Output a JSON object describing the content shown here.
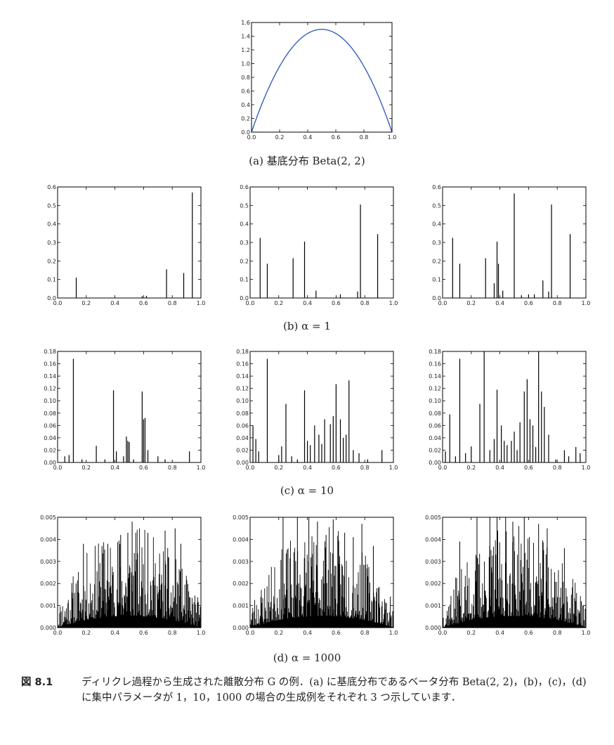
{
  "chart_data": [
    {
      "id": "a",
      "type": "line",
      "subtitle": "(a) 基底分布 Beta(2, 2)",
      "xlim": [
        0,
        1
      ],
      "ylim": [
        0,
        1.6
      ],
      "xticks": [
        "0.0",
        "0.2",
        "0.4",
        "0.6",
        "0.8",
        "1.0"
      ],
      "yticks": [
        "0.0",
        "0.2",
        "0.4",
        "0.6",
        "0.8",
        "1.0",
        "1.2",
        "1.4",
        "1.6"
      ],
      "ytick_values": [
        0,
        0.2,
        0.4,
        0.6,
        0.8,
        1.0,
        1.2,
        1.4,
        1.6
      ],
      "function": "6x(1-x)",
      "line_color": "#3a5fb8"
    },
    {
      "id": "b1",
      "type": "bar",
      "xlim": [
        0,
        1
      ],
      "ylim": [
        0,
        0.6
      ],
      "xticks": [
        "0.0",
        "0.2",
        "0.4",
        "0.6",
        "0.8",
        "1.0"
      ],
      "yticks": [
        "0.0",
        "0.1",
        "0.2",
        "0.3",
        "0.4",
        "0.5",
        "0.6"
      ],
      "ytick_values": [
        0,
        0.1,
        0.2,
        0.3,
        0.4,
        0.5,
        0.6
      ],
      "x": [
        0.13,
        0.59,
        0.62,
        0.76,
        0.88,
        0.94
      ],
      "y": [
        0.11,
        0.01,
        0.012,
        0.155,
        0.135,
        0.57
      ]
    },
    {
      "id": "b2",
      "type": "bar",
      "xlim": [
        0,
        1
      ],
      "ylim": [
        0,
        0.6
      ],
      "xticks": [
        "0.0",
        "0.2",
        "0.4",
        "0.6",
        "0.8",
        "1.0"
      ],
      "yticks": [
        "0.0",
        "0.1",
        "0.2",
        "0.3",
        "0.4",
        "0.5",
        "0.6"
      ],
      "ytick_values": [
        0,
        0.1,
        0.2,
        0.3,
        0.4,
        0.5,
        0.6
      ],
      "x": [
        0.07,
        0.12,
        0.3,
        0.38,
        0.46,
        0.63,
        0.75,
        0.77,
        0.89
      ],
      "y": [
        0.325,
        0.185,
        0.215,
        0.305,
        0.04,
        0.02,
        0.035,
        0.505,
        0.345
      ]
    },
    {
      "id": "b3",
      "type": "bar",
      "xlim": [
        0,
        1
      ],
      "ylim": [
        0,
        0.6
      ],
      "xticks": [
        "0.0",
        "0.2",
        "0.4",
        "0.6",
        "0.8",
        "1.0"
      ],
      "yticks": [
        "0.0",
        "0.1",
        "0.2",
        "0.3",
        "0.4",
        "0.5",
        "0.6"
      ],
      "ytick_values": [
        0,
        0.1,
        0.2,
        0.3,
        0.4,
        0.5,
        0.6
      ],
      "x": [
        0.07,
        0.12,
        0.3,
        0.36,
        0.38,
        0.39,
        0.42,
        0.5,
        0.55,
        0.6,
        0.64,
        0.7,
        0.74,
        0.76,
        0.89
      ],
      "y": [
        0.325,
        0.185,
        0.215,
        0.08,
        0.305,
        0.185,
        0.04,
        0.565,
        0.015,
        0.02,
        0.02,
        0.095,
        0.035,
        0.505,
        0.345
      ]
    },
    {
      "id": "c1",
      "type": "bar",
      "xlim": [
        0,
        1
      ],
      "ylim": [
        0,
        0.18
      ],
      "xticks": [
        "0.0",
        "0.2",
        "0.4",
        "0.6",
        "0.8",
        "1.0"
      ],
      "yticks": [
        "0.00",
        "0.02",
        "0.04",
        "0.06",
        "0.08",
        "0.10",
        "0.12",
        "0.14",
        "0.16",
        "0.18"
      ],
      "ytick_values": [
        0,
        0.02,
        0.04,
        0.06,
        0.08,
        0.1,
        0.12,
        0.14,
        0.16,
        0.18
      ],
      "x": [
        0.05,
        0.08,
        0.11,
        0.17,
        0.27,
        0.33,
        0.39,
        0.41,
        0.46,
        0.48,
        0.49,
        0.5,
        0.53,
        0.59,
        0.6,
        0.61,
        0.63,
        0.7,
        0.75,
        0.92
      ],
      "y": [
        0.01,
        0.012,
        0.168,
        0.005,
        0.027,
        0.005,
        0.117,
        0.018,
        0.01,
        0.042,
        0.035,
        0.033,
        0.005,
        0.115,
        0.07,
        0.072,
        0.02,
        0.01,
        0.005,
        0.018
      ]
    },
    {
      "id": "c2",
      "type": "bar",
      "xlim": [
        0,
        1
      ],
      "ylim": [
        0,
        0.18
      ],
      "xticks": [
        "0.0",
        "0.2",
        "0.4",
        "0.6",
        "0.8",
        "1.0"
      ],
      "yticks": [
        "0.00",
        "0.02",
        "0.04",
        "0.06",
        "0.08",
        "0.10",
        "0.12",
        "0.14",
        "0.16",
        "0.18"
      ],
      "ytick_values": [
        0,
        0.02,
        0.04,
        0.06,
        0.08,
        0.1,
        0.12,
        0.14,
        0.16,
        0.18
      ],
      "x": [
        0.02,
        0.04,
        0.06,
        0.12,
        0.2,
        0.22,
        0.25,
        0.29,
        0.33,
        0.38,
        0.4,
        0.42,
        0.45,
        0.48,
        0.5,
        0.52,
        0.56,
        0.58,
        0.6,
        0.63,
        0.65,
        0.67,
        0.69,
        0.72,
        0.76,
        0.82,
        0.92
      ],
      "y": [
        0.06,
        0.038,
        0.018,
        0.168,
        0.012,
        0.026,
        0.095,
        0.01,
        0.005,
        0.117,
        0.035,
        0.028,
        0.06,
        0.045,
        0.03,
        0.07,
        0.062,
        0.075,
        0.127,
        0.07,
        0.04,
        0.045,
        0.133,
        0.02,
        0.015,
        0.005,
        0.02
      ]
    },
    {
      "id": "c3",
      "type": "bar",
      "xlim": [
        0,
        1
      ],
      "ylim": [
        0,
        0.18
      ],
      "xticks": [
        "0.0",
        "0.2",
        "0.4",
        "0.6",
        "0.8",
        "1.0"
      ],
      "yticks": [
        "0.00",
        "0.02",
        "0.04",
        "0.06",
        "0.08",
        "0.10",
        "0.12",
        "0.14",
        "0.16",
        "0.18"
      ],
      "ytick_values": [
        0,
        0.02,
        0.04,
        0.06,
        0.08,
        0.1,
        0.12,
        0.14,
        0.16,
        0.18
      ],
      "x": [
        0.02,
        0.05,
        0.09,
        0.12,
        0.16,
        0.2,
        0.26,
        0.29,
        0.33,
        0.36,
        0.38,
        0.41,
        0.43,
        0.45,
        0.48,
        0.5,
        0.52,
        0.54,
        0.57,
        0.59,
        0.61,
        0.63,
        0.65,
        0.67,
        0.69,
        0.71,
        0.74,
        0.79,
        0.85,
        0.88,
        0.93,
        0.96
      ],
      "y": [
        0.018,
        0.078,
        0.01,
        0.168,
        0.015,
        0.026,
        0.095,
        0.18,
        0.02,
        0.038,
        0.118,
        0.06,
        0.035,
        0.028,
        0.035,
        0.05,
        0.02,
        0.065,
        0.115,
        0.135,
        0.07,
        0.06,
        0.025,
        0.18,
        0.115,
        0.09,
        0.045,
        0.005,
        0.02,
        0.01,
        0.025,
        0.015
      ]
    },
    {
      "id": "d1",
      "type": "bar",
      "dense_bars": 300,
      "seed": 11,
      "xlim": [
        0,
        1
      ],
      "ylim": [
        0,
        0.005
      ],
      "xticks": [
        "0.0",
        "0.2",
        "0.4",
        "0.6",
        "0.8",
        "1.0"
      ],
      "yticks": [
        "0.000",
        "0.001",
        "0.002",
        "0.003",
        "0.004",
        "0.005"
      ],
      "ytick_values": [
        0,
        0.001,
        0.002,
        0.003,
        0.004,
        0.005
      ],
      "peaks_x": [
        0.18,
        0.31,
        0.35,
        0.44,
        0.49,
        0.52,
        0.63,
        0.75,
        0.82,
        0.86
      ],
      "peaks_y": [
        0.0038,
        0.0037,
        0.0038,
        0.0042,
        0.0043,
        0.0048,
        0.0043,
        0.0044,
        0.0045,
        0.0038
      ]
    },
    {
      "id": "d2",
      "type": "bar",
      "dense_bars": 300,
      "seed": 23,
      "xlim": [
        0,
        1
      ],
      "ylim": [
        0,
        0.005
      ],
      "xticks": [
        "0.0",
        "0.2",
        "0.4",
        "0.6",
        "0.8",
        "1.0"
      ],
      "yticks": [
        "0.000",
        "0.001",
        "0.002",
        "0.003",
        "0.004",
        "0.005"
      ],
      "ytick_values": [
        0,
        0.001,
        0.002,
        0.003,
        0.004,
        0.005
      ],
      "peaks_x": [
        0.23,
        0.33,
        0.41,
        0.47,
        0.53,
        0.58,
        0.66,
        0.72,
        0.78,
        0.86
      ],
      "peaks_y": [
        0.005,
        0.005,
        0.005,
        0.0048,
        0.0042,
        0.0049,
        0.0043,
        0.0041,
        0.0047,
        0.0037
      ]
    },
    {
      "id": "d3",
      "type": "bar",
      "dense_bars": 300,
      "seed": 37,
      "xlim": [
        0,
        1
      ],
      "ylim": [
        0,
        0.005
      ],
      "xticks": [
        "0.0",
        "0.2",
        "0.4",
        "0.6",
        "0.8",
        "1.0"
      ],
      "yticks": [
        "0.000",
        "0.001",
        "0.002",
        "0.003",
        "0.004",
        "0.005"
      ],
      "ytick_values": [
        0,
        0.001,
        0.002,
        0.003,
        0.004,
        0.005
      ],
      "peaks_x": [
        0.12,
        0.24,
        0.33,
        0.38,
        0.44,
        0.49,
        0.57,
        0.67,
        0.73,
        0.85
      ],
      "peaks_y": [
        0.0039,
        0.005,
        0.005,
        0.005,
        0.005,
        0.0048,
        0.005,
        0.0047,
        0.0045,
        0.0036
      ]
    }
  ],
  "labels": {
    "b": "(b) α = 1",
    "c": "(c) α = 10",
    "d": "(d) α = 1000"
  },
  "caption": {
    "label": "図 8.1",
    "text": "ディリクレ過程から生成された離散分布 G の例．(a) に基底分布であるベータ分布 Beta(2, 2)，(b)，(c)，(d) に集中パラメータが 1，10，1000 の場合の生成例をそれぞれ 3 つ示しています．"
  }
}
